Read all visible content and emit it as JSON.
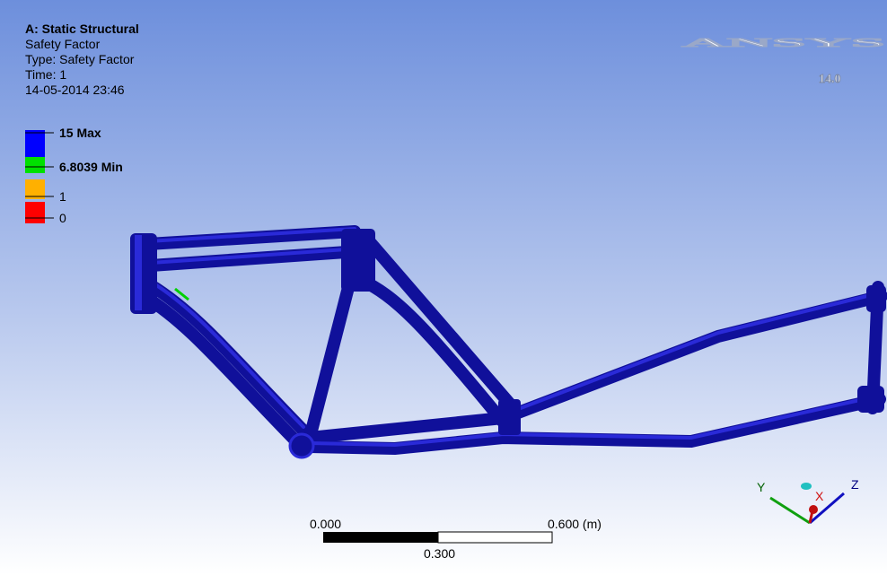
{
  "header": {
    "title": "A: Static Structural",
    "lines": [
      "Safety Factor",
      "Type: Safety Factor",
      "Time: 1",
      "14-05-2014 23:46"
    ]
  },
  "legend": {
    "entries": [
      {
        "label": "15 Max",
        "color": "#0000ff"
      },
      {
        "label": "6.8039 Min",
        "color": "#00e000"
      },
      {
        "label": "1",
        "color": "#ffb000"
      },
      {
        "label": "0",
        "color": "#ff0000"
      }
    ]
  },
  "logo": {
    "brand": "ANSYS",
    "version": "14.0"
  },
  "scale_bar": {
    "start": "0.000",
    "end": "0.600 (m)",
    "middle": "0.300"
  },
  "triad": {
    "x": "X",
    "y": "Y",
    "z": "Z"
  }
}
